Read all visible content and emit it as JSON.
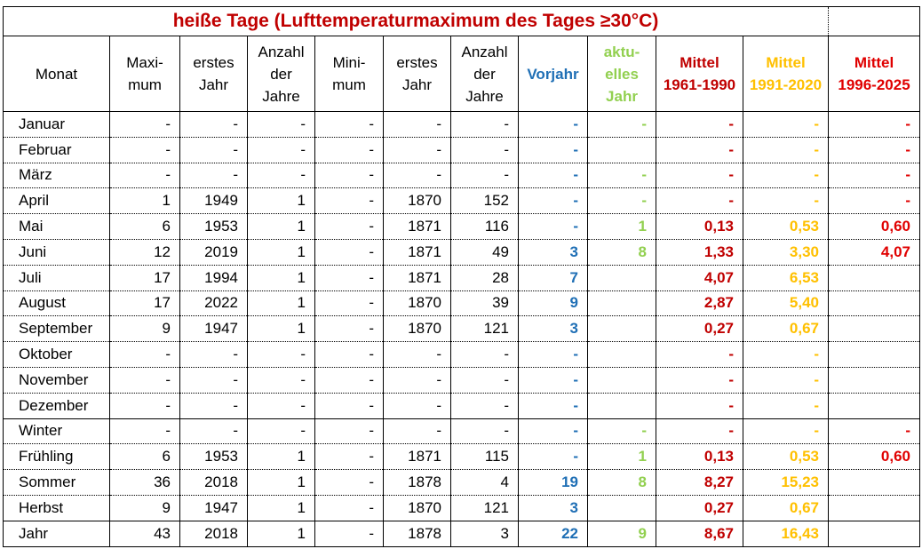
{
  "title": "heiße Tage (Lufttemperaturmaximum des Tages ≥30°C)",
  "colors": {
    "previous_year": "#1f6fb5",
    "current_year": "#92d050",
    "mean_1961_1990": "#c00000",
    "mean_1991_2020": "#ffc000",
    "mean_1996_2025": "#e00000"
  },
  "headers": [
    [
      "Monat"
    ],
    [
      "Maxi-",
      "mum"
    ],
    [
      "erstes",
      "Jahr"
    ],
    [
      "Anzahl",
      "der",
      "Jahre"
    ],
    [
      "Mini-",
      "mum"
    ],
    [
      "erstes",
      "Jahr"
    ],
    [
      "Anzahl",
      "der",
      "Jahre"
    ],
    [
      "Vorjahr"
    ],
    [
      "aktu-",
      "elles",
      "Jahr"
    ],
    [
      "Mittel",
      "1961-1990"
    ],
    [
      "Mittel",
      "1991-2020"
    ],
    [
      "Mittel",
      "1996-2025"
    ]
  ],
  "rows": [
    [
      "Januar",
      "-",
      "-",
      "-",
      "-",
      "-",
      "-",
      "-",
      "-",
      "-",
      "-",
      "-"
    ],
    [
      "Februar",
      "-",
      "-",
      "-",
      "-",
      "-",
      "-",
      "-",
      "",
      "-",
      "-",
      "-"
    ],
    [
      "März",
      "-",
      "-",
      "-",
      "-",
      "-",
      "-",
      "-",
      "-",
      "-",
      "-",
      "-"
    ],
    [
      "April",
      "1",
      "1949",
      "1",
      "-",
      "1870",
      "152",
      "-",
      "-",
      "-",
      "-",
      "-"
    ],
    [
      "Mai",
      "6",
      "1953",
      "1",
      "-",
      "1871",
      "116",
      "-",
      "1",
      "0,13",
      "0,53",
      "0,60"
    ],
    [
      "Juni",
      "12",
      "2019",
      "1",
      "-",
      "1871",
      "49",
      "3",
      "8",
      "1,33",
      "3,30",
      "4,07"
    ],
    [
      "Juli",
      "17",
      "1994",
      "1",
      "-",
      "1871",
      "28",
      "7",
      "",
      "4,07",
      "6,53",
      ""
    ],
    [
      "August",
      "17",
      "2022",
      "1",
      "-",
      "1870",
      "39",
      "9",
      "",
      "2,87",
      "5,40",
      ""
    ],
    [
      "September",
      "9",
      "1947",
      "1",
      "-",
      "1870",
      "121",
      "3",
      "",
      "0,27",
      "0,67",
      ""
    ],
    [
      "Oktober",
      "-",
      "-",
      "-",
      "-",
      "-",
      "-",
      "-",
      "",
      "-",
      "-",
      ""
    ],
    [
      "November",
      "-",
      "-",
      "-",
      "-",
      "-",
      "-",
      "-",
      "",
      "-",
      "-",
      ""
    ],
    [
      "Dezember",
      "-",
      "-",
      "-",
      "-",
      "-",
      "-",
      "-",
      "",
      "-",
      "-",
      ""
    ],
    [
      "Winter",
      "-",
      "-",
      "-",
      "-",
      "-",
      "-",
      "-",
      "-",
      "-",
      "-",
      "-"
    ],
    [
      "Frühling",
      "6",
      "1953",
      "1",
      "-",
      "1871",
      "115",
      "-",
      "1",
      "0,13",
      "0,53",
      "0,60"
    ],
    [
      "Sommer",
      "36",
      "2018",
      "1",
      "-",
      "1878",
      "4",
      "19",
      "8",
      "8,27",
      "15,23",
      ""
    ],
    [
      "Herbst",
      "9",
      "1947",
      "1",
      "-",
      "1870",
      "121",
      "3",
      "",
      "0,27",
      "0,67",
      ""
    ],
    [
      "Jahr",
      "43",
      "2018",
      "1",
      "-",
      "1878",
      "3",
      "22",
      "9",
      "8,67",
      "16,43",
      ""
    ]
  ]
}
